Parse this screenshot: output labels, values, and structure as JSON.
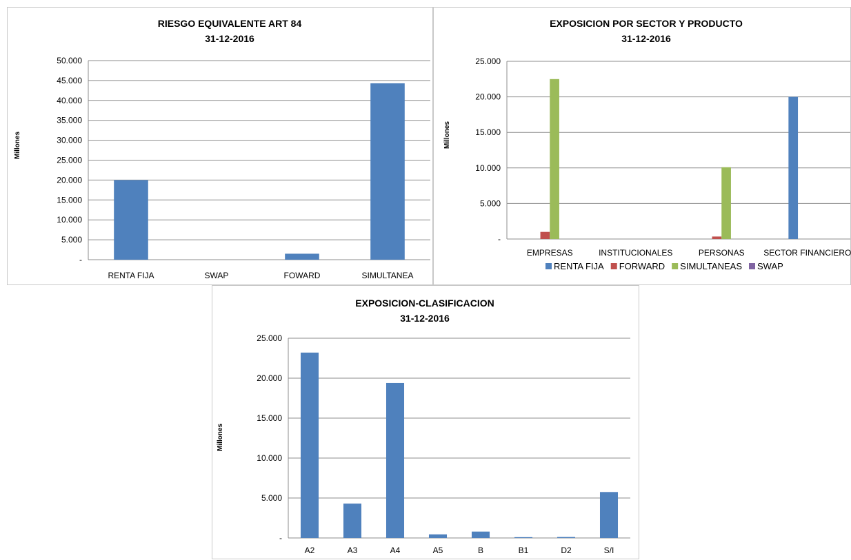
{
  "chart_data": [
    {
      "type": "bar",
      "title": "RIESGO EQUIVALENTE ART 84",
      "subtitle": "31-12-2016",
      "ylabel": "Millones",
      "ylim": [
        0,
        50000
      ],
      "yticks": [
        "-",
        "5.000",
        "10.000",
        "15.000",
        "20.000",
        "25.000",
        "30.000",
        "35.000",
        "40.000",
        "45.000",
        "50.000"
      ],
      "categories": [
        "RENTA FIJA",
        "SWAP",
        "FOWARD",
        "SIMULTANEA"
      ],
      "values": [
        20000,
        0,
        1500,
        44300
      ],
      "color": "#4F81BD",
      "grid": true
    },
    {
      "type": "bar",
      "title": "EXPOSICION POR SECTOR Y PRODUCTO",
      "subtitle": "31-12-2016",
      "ylabel": "Millones",
      "ylim": [
        0,
        25000
      ],
      "yticks": [
        "-",
        "5.000",
        "10.000",
        "15.000",
        "20.000",
        "25.000"
      ],
      "categories": [
        "EMPRESAS",
        "INSTITUCIONALES",
        "PERSONAS",
        "SECTOR FINANCIERO"
      ],
      "series": [
        {
          "name": "RENTA FIJA",
          "color": "#4F81BD",
          "values": [
            0,
            0,
            0,
            20000
          ]
        },
        {
          "name": "FORWARD",
          "color": "#C0504D",
          "values": [
            1000,
            0,
            350,
            0
          ]
        },
        {
          "name": "SIMULTANEAS",
          "color": "#9BBB59",
          "values": [
            22500,
            0,
            10100,
            0
          ]
        },
        {
          "name": "SWAP",
          "color": "#8064A2",
          "values": [
            0,
            0,
            0,
            0
          ]
        }
      ],
      "legend": "bottom",
      "grid": true
    },
    {
      "type": "bar",
      "title": "EXPOSICION-CLASIFICACION",
      "subtitle": "31-12-2016",
      "ylabel": "Millones",
      "ylim": [
        0,
        25000
      ],
      "yticks": [
        "-",
        "5.000",
        "10.000",
        "15.000",
        "20.000",
        "25.000"
      ],
      "categories": [
        "A2",
        "A3",
        "A4",
        "A5",
        "B",
        "B1",
        "D2",
        "S/I"
      ],
      "values": [
        23200,
        4300,
        19400,
        450,
        800,
        100,
        120,
        5750
      ],
      "color": "#4F81BD",
      "grid": true
    }
  ]
}
